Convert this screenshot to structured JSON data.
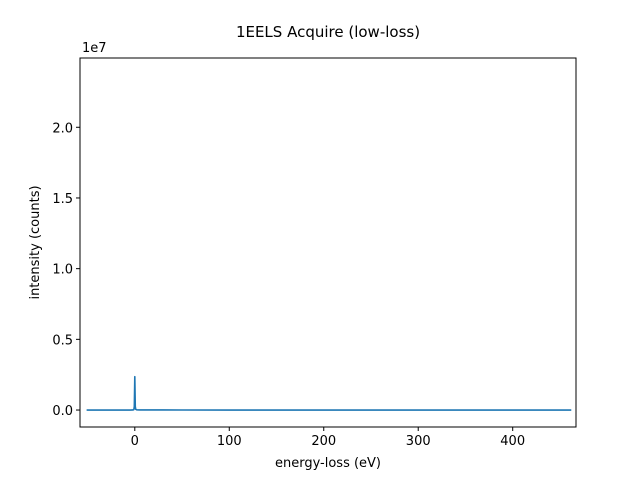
{
  "chart_data": {
    "type": "line",
    "title": "1EELS Acquire (low-loss)",
    "xlabel": "energy-loss (eV)",
    "ylabel": "intensity (counts)",
    "y_scale_label": "1e7",
    "xlim": [
      -58,
      467
    ],
    "ylim": [
      -1.2,
      24.9
    ],
    "y_units": "1e7 counts",
    "grid": false,
    "legend": "none",
    "x_ticks": [
      0,
      100,
      200,
      300,
      400
    ],
    "x_tick_labels": [
      "0",
      "100",
      "200",
      "300",
      "400"
    ],
    "y_ticks": [
      0,
      0.5,
      1.0,
      1.5,
      2.0
    ],
    "y_tick_labels": [
      "0.0",
      "0.5",
      "1.0",
      "1.5",
      "2.0"
    ],
    "series": [
      {
        "color": "#1f77b4",
        "x": [
          -51,
          -20,
          -5,
          -2,
          -1,
          -0.5,
          0,
          0.5,
          1,
          2,
          5,
          10,
          20,
          30,
          50,
          100,
          200,
          300,
          400,
          462
        ],
        "y": [
          0.0,
          0.0,
          0.01,
          0.05,
          0.3,
          2.5,
          23.6,
          2.5,
          0.5,
          0.15,
          0.06,
          0.04,
          0.05,
          0.04,
          0.02,
          0.01,
          0.01,
          0.01,
          0.01,
          0.01
        ]
      }
    ]
  }
}
